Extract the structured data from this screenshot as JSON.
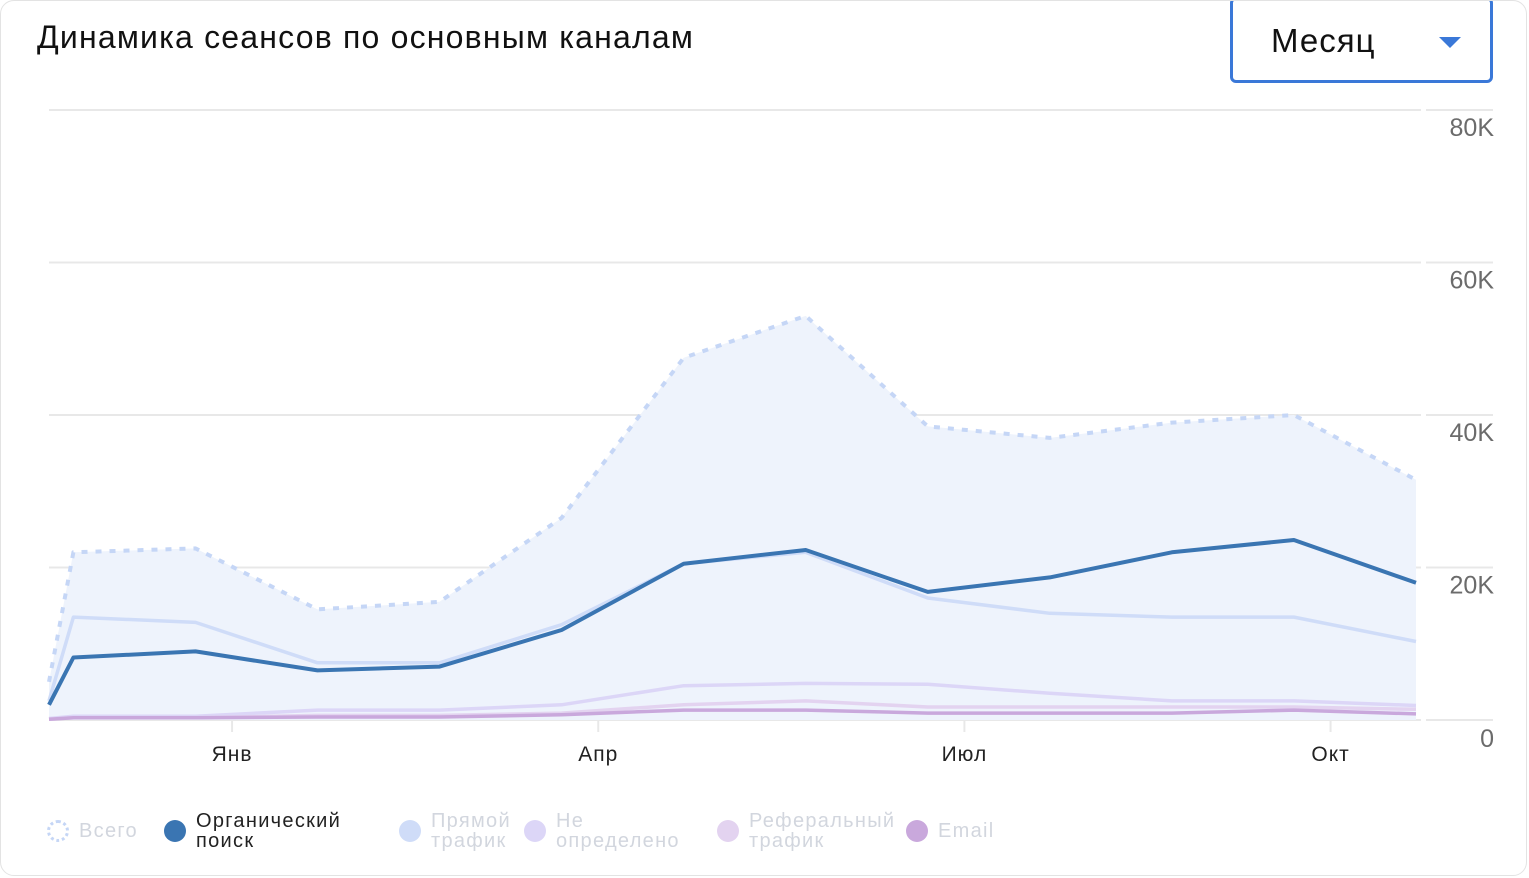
{
  "header": {
    "title": "Динамика сеансов по основным каналам",
    "period_select": {
      "value": "Месяц"
    }
  },
  "colors": {
    "total": "#c5d6f6",
    "total_fill": "#eef3fc",
    "organic": "#3a75b2",
    "direct": "#cfdcf8",
    "undefined": "#dcd6f7",
    "referral": "#e3d3f0",
    "email": "#c9a8dc",
    "grid": "#e8e8e8",
    "axis_text": "#6b6b6b"
  },
  "chart_data": {
    "type": "line",
    "y_axis": {
      "position": "right",
      "ylim": [
        0,
        80000
      ],
      "ticks": [
        0,
        20000,
        40000,
        60000,
        80000
      ],
      "tick_labels": [
        "0",
        "20K",
        "40K",
        "60K",
        "80K"
      ]
    },
    "x_axis": {
      "labels": [
        {
          "label": "Янв",
          "index": 1.5
        },
        {
          "label": "Апр",
          "index": 4.5
        },
        {
          "label": "Июл",
          "index": 7.5
        },
        {
          "label": "Окт",
          "index": 10.5
        }
      ]
    },
    "x": [
      0,
      0.2,
      1.2,
      2.2,
      3.2,
      4.2,
      5.2,
      6.2,
      7.2,
      8.2,
      9.2,
      10.2,
      11.2
    ],
    "series": [
      {
        "key": "total",
        "name": "Всего",
        "style": "dotted-area",
        "values": [
          5000,
          22000,
          22500,
          14500,
          15500,
          26500,
          47500,
          53000,
          38500,
          37000,
          39000,
          40000,
          31500
        ]
      },
      {
        "key": "direct",
        "name": "Прямой трафик",
        "style": "line",
        "values": [
          2500,
          13500,
          12800,
          7500,
          7500,
          12500,
          20500,
          22000,
          16000,
          14000,
          13500,
          13500,
          10300
        ]
      },
      {
        "key": "undefined",
        "name": "Не определено",
        "style": "line",
        "values": [
          200,
          500,
          500,
          1300,
          1300,
          2000,
          4500,
          4800,
          4700,
          3500,
          2500,
          2500,
          1900
        ]
      },
      {
        "key": "referral",
        "name": "Реферальный трафик",
        "style": "line",
        "values": [
          100,
          300,
          300,
          600,
          600,
          900,
          2000,
          2500,
          1700,
          1700,
          1700,
          1700,
          1400
        ]
      },
      {
        "key": "email",
        "name": "Email",
        "style": "line",
        "values": [
          100,
          300,
          300,
          400,
          400,
          700,
          1300,
          1300,
          900,
          900,
          900,
          1300,
          800
        ]
      },
      {
        "key": "organic",
        "name": "Органический поиск",
        "style": "bold-line",
        "values": [
          2000,
          8200,
          9000,
          6500,
          7000,
          11800,
          20500,
          22300,
          16800,
          18700,
          22000,
          23600,
          18000
        ]
      }
    ]
  },
  "legend": {
    "items": [
      {
        "key": "total",
        "label": "Всего",
        "active": false
      },
      {
        "key": "organic",
        "label": "Органический\nпоиск",
        "active": true
      },
      {
        "key": "direct",
        "label": "Прямой\nтрафик",
        "active": false
      },
      {
        "key": "undefined",
        "label": "Не\nопределено",
        "active": false
      },
      {
        "key": "referral",
        "label": "Реферальный\nтрафик",
        "active": false
      },
      {
        "key": "email",
        "label": "Email",
        "active": false
      }
    ]
  }
}
